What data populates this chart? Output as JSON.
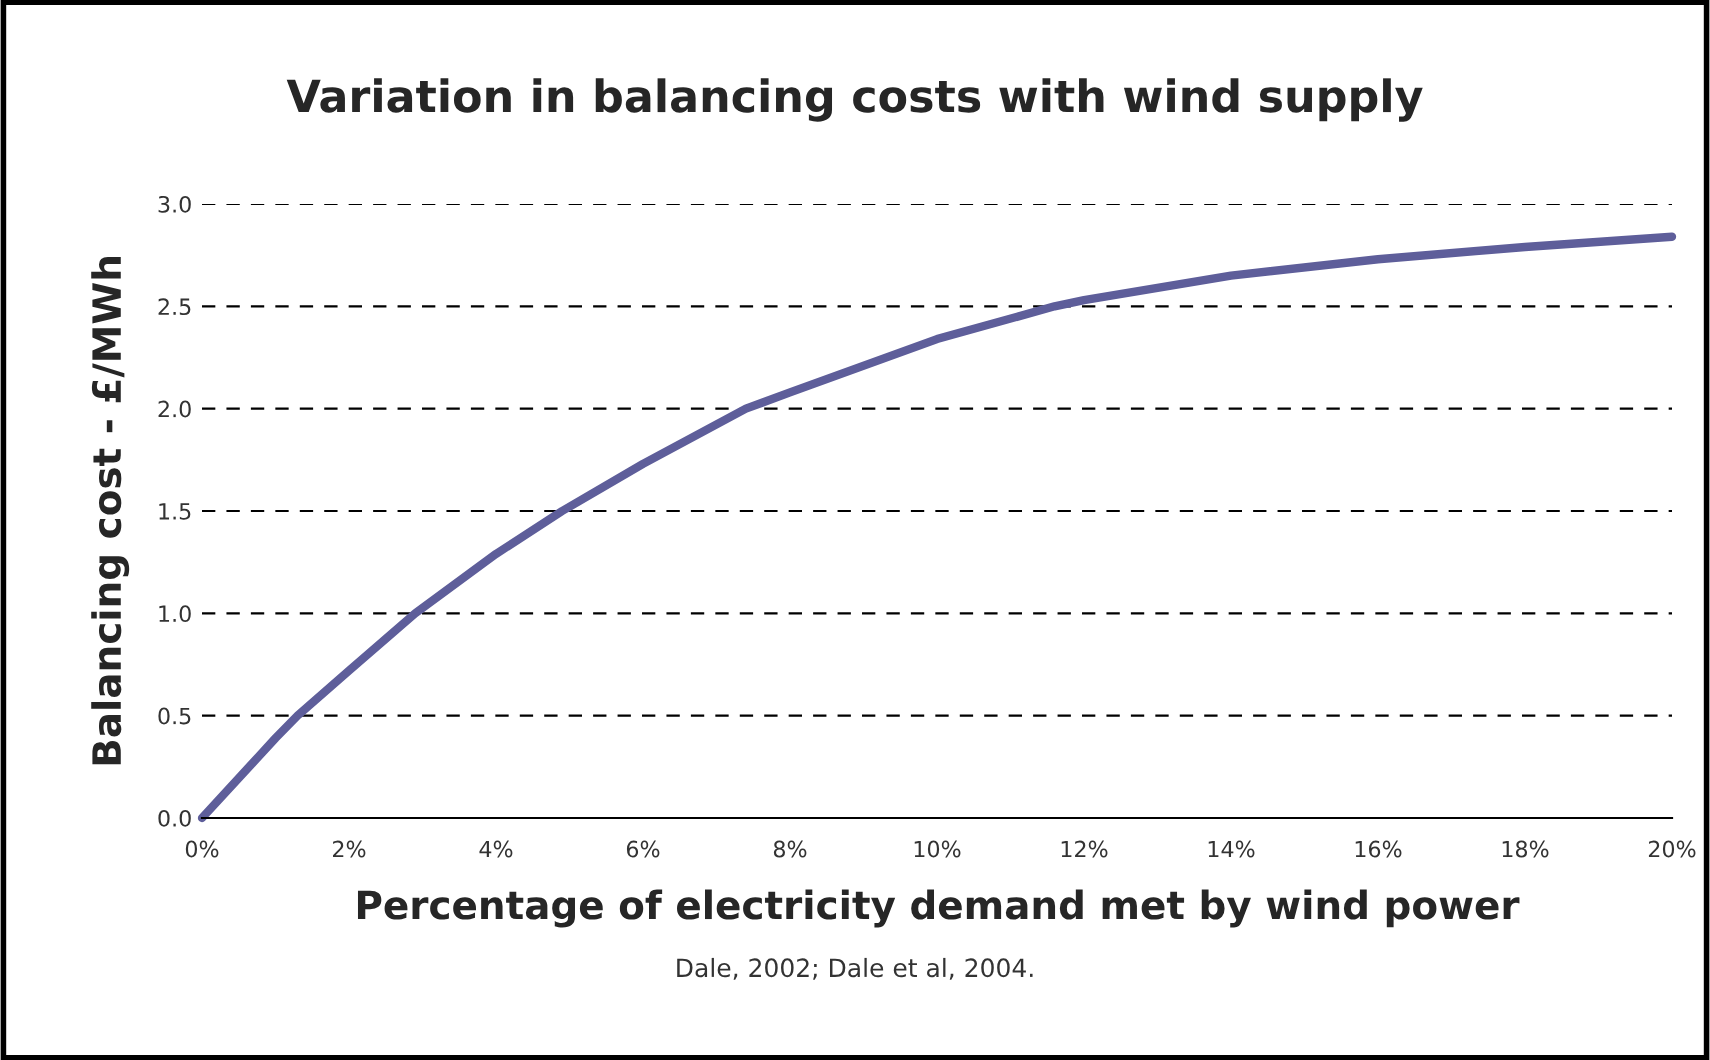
{
  "chart_data": {
    "type": "line",
    "title": "Variation in balancing costs with wind supply",
    "xlabel": "Percentage of electricity demand met by wind power",
    "ylabel": "Balancing cost - £/MWh",
    "series": [
      {
        "color": "#5e5e9a",
        "x": [
          0,
          1,
          1.3,
          2,
          2.9,
          4,
          4.9,
          6,
          7.4,
          8,
          10,
          11.6,
          12,
          14,
          16,
          18,
          20
        ],
        "values": [
          0,
          0.39,
          0.5,
          0.72,
          1.0,
          1.29,
          1.5,
          1.73,
          2.0,
          2.08,
          2.34,
          2.5,
          2.53,
          2.65,
          2.73,
          2.79,
          2.84
        ]
      }
    ],
    "xlim": [
      0,
      20
    ],
    "xticks": [
      {
        "value": 0,
        "label": "0%"
      },
      {
        "value": 2,
        "label": "2%"
      },
      {
        "value": 4,
        "label": "4%"
      },
      {
        "value": 6,
        "label": "6%"
      },
      {
        "value": 8,
        "label": "8%"
      },
      {
        "value": 10,
        "label": "10%"
      },
      {
        "value": 12,
        "label": "12%"
      },
      {
        "value": 14,
        "label": "14%"
      },
      {
        "value": 16,
        "label": "16%"
      },
      {
        "value": 18,
        "label": "18%"
      },
      {
        "value": 20,
        "label": "20%"
      }
    ],
    "ylim": [
      0,
      3
    ],
    "yticks": [
      {
        "value": 0,
        "label": "0.0"
      },
      {
        "value": 0.5,
        "label": "0.5"
      },
      {
        "value": 1,
        "label": "1.0"
      },
      {
        "value": 1.5,
        "label": "1.5"
      },
      {
        "value": 2,
        "label": "2.0"
      },
      {
        "value": 2.5,
        "label": "2.5"
      },
      {
        "value": 3,
        "label": "3.0"
      }
    ],
    "grid": "y",
    "line_style": "solid",
    "marker": "none",
    "annotations": [
      "Dale, 2002; Dale et al, 2004."
    ]
  }
}
